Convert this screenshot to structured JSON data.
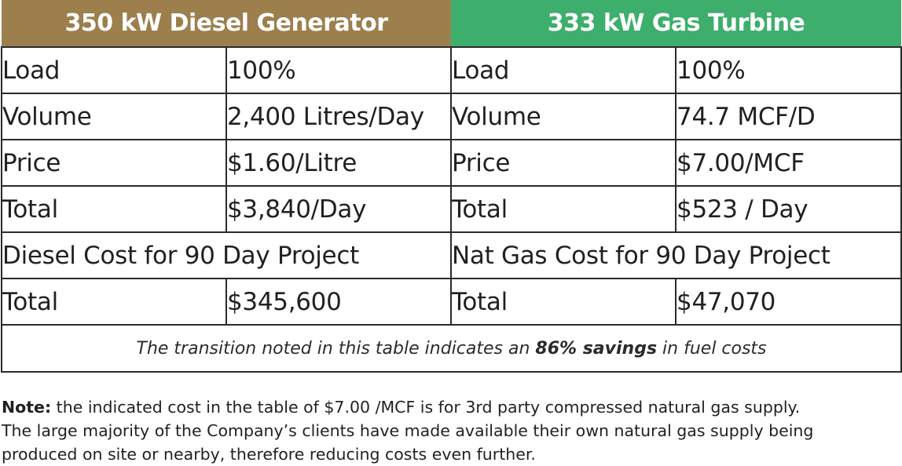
{
  "table": {
    "diesel_header": "350 kW Diesel Generator",
    "gas_header": "333 kW Gas Turbine",
    "rows": [
      {
        "d_label": "Load",
        "d_value": "100%",
        "g_label": "Load",
        "g_value": "100%"
      },
      {
        "d_label": "Volume",
        "d_value": "2,400 Litres/Day",
        "g_label": "Volume",
        "g_value": "74.7 MCF/D"
      },
      {
        "d_label": "Price",
        "d_value": "$1.60/Litre",
        "g_label": "Price",
        "g_value": "$7.00/MCF"
      },
      {
        "d_label": "Total",
        "d_value": "$3,840/Day",
        "g_label": "Total",
        "g_value": "$523 / Day"
      }
    ],
    "diesel_project_label": "Diesel Cost for 90 Day Project",
    "gas_project_label": "Nat Gas Cost for 90 Day Project",
    "project_total": {
      "d_label": "Total",
      "d_value": "$345,600",
      "g_label": "Total",
      "g_value": "$47,070"
    },
    "summary": {
      "pre": "The transition noted in this table indicates an ",
      "highlight": "86% savings",
      "post": " in fuel costs"
    }
  },
  "note": {
    "label": "Note:",
    "line1": " the indicated cost in the table of $7.00 /MCF is for 3rd party compressed natural gas supply.",
    "line2": "The large majority of the Company’s clients have made available their own natural gas supply being",
    "line3": "produced on site or nearby, therefore reducing costs even further."
  }
}
